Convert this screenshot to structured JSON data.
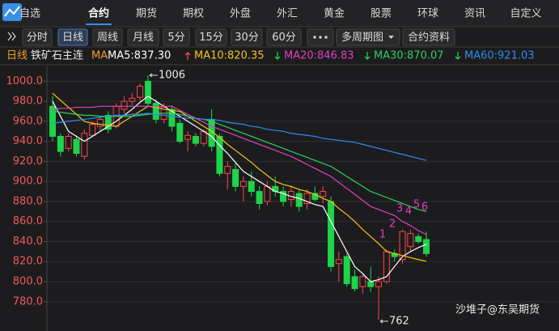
{
  "tabs": [
    "自选",
    "合约",
    "期货",
    "期权",
    "外盘",
    "外汇",
    "黄金",
    "股票",
    "环球",
    "资讯",
    "自定义"
  ],
  "active_tab": 1,
  "toolbar": [
    "分时",
    "日线",
    "周线",
    "月线",
    "5分",
    "15分",
    "30分",
    "60分",
    "多周期图",
    "合约资料"
  ],
  "active_tool": 1,
  "info": {
    "period": "日线",
    "contract": "铁矿石主连",
    "ma_label": "MA"
  },
  "chart_data": {
    "type": "candlestick",
    "open": [
      975,
      945,
      933,
      942,
      925,
      946,
      955,
      966,
      955,
      972,
      980,
      984,
      1000,
      978,
      962,
      972,
      958,
      942,
      945,
      938,
      962,
      945,
      908,
      912,
      895,
      900,
      890,
      880,
      895,
      890,
      882,
      888,
      878,
      888,
      885,
      880,
      818,
      825,
      805,
      795,
      800,
      795,
      800,
      828,
      822,
      835,
      845,
      842
    ],
    "high": [
      985,
      948,
      948,
      946,
      952,
      960,
      965,
      970,
      978,
      985,
      988,
      998,
      1006,
      982,
      978,
      976,
      962,
      950,
      948,
      952,
      972,
      948,
      920,
      918,
      905,
      910,
      895,
      900,
      905,
      895,
      895,
      892,
      892,
      895,
      895,
      885,
      830,
      828,
      812,
      808,
      815,
      805,
      832,
      832,
      852,
      852,
      848,
      850
    ],
    "low": [
      940,
      925,
      930,
      925,
      922,
      944,
      950,
      948,
      953,
      968,
      976,
      980,
      975,
      958,
      958,
      950,
      938,
      930,
      935,
      935,
      930,
      905,
      892,
      890,
      880,
      885,
      872,
      876,
      885,
      875,
      875,
      870,
      872,
      880,
      878,
      810,
      800,
      795,
      790,
      788,
      790,
      762,
      798,
      820,
      818,
      830,
      838,
      825
    ],
    "close": [
      945,
      930,
      945,
      928,
      948,
      957,
      962,
      952,
      975,
      980,
      983,
      995,
      978,
      962,
      974,
      955,
      940,
      946,
      938,
      950,
      935,
      908,
      915,
      895,
      900,
      890,
      878,
      895,
      890,
      880,
      890,
      875,
      888,
      882,
      890,
      815,
      822,
      798,
      793,
      805,
      795,
      800,
      830,
      825,
      850,
      848,
      840,
      828
    ],
    "up_color": "#ff4646",
    "down_color": "#1fd34a",
    "series": [
      {
        "name": "MA5:837.30",
        "color": "#ffffff",
        "trend": null,
        "values": [
          980,
          965,
          950,
          945,
          940,
          945,
          950,
          955,
          960,
          966,
          972,
          979,
          985,
          980,
          975,
          970,
          965,
          960,
          955,
          950,
          945,
          936,
          928,
          919,
          910,
          905,
          900,
          895,
          890,
          888,
          885,
          883,
          880,
          877,
          875,
          860,
          845,
          830,
          815,
          808,
          800,
          802,
          805,
          815,
          825,
          830,
          834,
          837.3
        ]
      },
      {
        "name": "MA10:820.35",
        "color": "#f5c518",
        "trend": "up",
        "values": [
          988,
          981,
          974,
          967,
          960,
          958,
          957,
          956,
          955,
          960,
          965,
          970,
          975,
          974,
          972,
          971,
          970,
          965,
          960,
          955,
          950,
          944,
          937,
          931,
          925,
          919,
          912,
          906,
          900,
          897,
          895,
          892,
          890,
          887,
          883,
          880,
          873,
          867,
          860,
          852,
          845,
          838,
          830,
          828,
          826,
          824,
          822,
          820.35
        ]
      },
      {
        "name": "MA20:846.83",
        "color": "#e040c0",
        "trend": "down",
        "values": [
          972,
          973,
          973,
          974,
          974,
          974,
          975,
          975,
          975,
          975,
          975,
          975,
          975,
          975,
          975,
          975,
          971,
          967,
          963,
          959,
          955,
          952,
          949,
          946,
          943,
          940,
          937,
          934,
          931,
          928,
          925,
          921,
          917,
          913,
          909,
          905,
          899,
          893,
          887,
          881,
          875,
          872,
          869,
          866,
          860,
          856,
          851,
          846.83
        ]
      },
      {
        "name": "MA30:870.07",
        "color": "#2fcf62",
        "trend": "down",
        "values": [
          970,
          969,
          968,
          967,
          966,
          966,
          965,
          965,
          965,
          965,
          965,
          966,
          967,
          968,
          968,
          968,
          967,
          965,
          963,
          962,
          960,
          957,
          954,
          951,
          948,
          945,
          942,
          939,
          936,
          933,
          930,
          927,
          924,
          921,
          918,
          915,
          910,
          905,
          900,
          895,
          890,
          887,
          884,
          881,
          878,
          875,
          872,
          870.07
        ]
      },
      {
        "name": "MA60:921.03",
        "color": "#2d8cf0",
        "trend": "down",
        "values": [
          958,
          959,
          960,
          961,
          962,
          963,
          964,
          965,
          966,
          966,
          967,
          967,
          968,
          967,
          966,
          965,
          964,
          963,
          963,
          962,
          962,
          961,
          959,
          958,
          957,
          955,
          954,
          952,
          951,
          950,
          948,
          947,
          946,
          945,
          943,
          942,
          941,
          940,
          939,
          937,
          935,
          933,
          931,
          929,
          927,
          925,
          923,
          921.03
        ]
      }
    ],
    "ylim": [
      758,
      1010
    ],
    "yticks": [
      {
        "value": 1000,
        "label": "1000.0"
      },
      {
        "value": 980,
        "label": "980.0"
      },
      {
        "value": 960,
        "label": "960.0"
      },
      {
        "value": 940,
        "label": "940.0"
      },
      {
        "value": 920,
        "label": "920.0"
      },
      {
        "value": 900,
        "label": "900.0"
      },
      {
        "value": 880,
        "label": "880.0"
      },
      {
        "value": 860,
        "label": "860.0"
      },
      {
        "value": 840,
        "label": "840.0"
      },
      {
        "value": 820,
        "label": "820.0"
      },
      {
        "value": 800,
        "label": "800.0"
      },
      {
        "value": 780,
        "label": "780.0"
      }
    ],
    "grid": true,
    "high_label": 1006,
    "low_label": 762,
    "wave_labels": [
      "1",
      "2",
      "3",
      "4",
      "5",
      "6"
    ],
    "watermark": "沙堆子@东吴期货"
  }
}
